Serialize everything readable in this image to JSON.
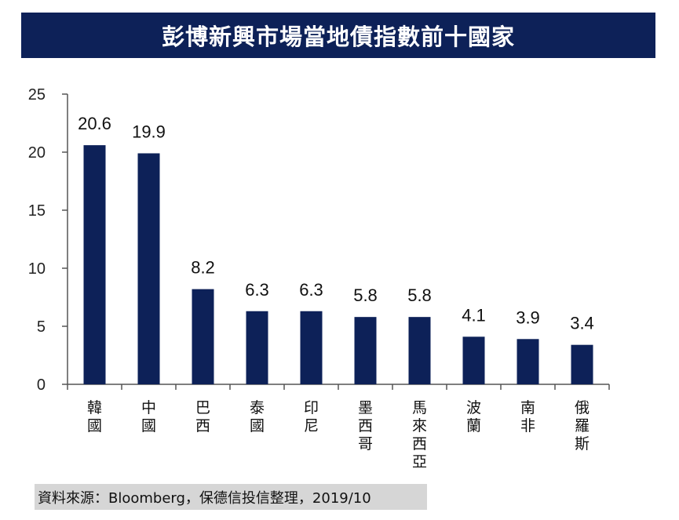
{
  "title": "彭博新興市場當地債指數前十國家",
  "source": "資料來源：Bloomberg，保德信投信整理，2019/10",
  "colors": {
    "bar": "#0d2158",
    "banner": "#0d2158",
    "axis": "#555555",
    "source_bg": "#d6d6d6"
  },
  "chart_data": {
    "type": "bar",
    "title": "彭博新興市場當地債指數前十國家",
    "xlabel": "",
    "ylabel": "",
    "categories": [
      "韓國",
      "中國",
      "巴西",
      "泰國",
      "印尼",
      "墨西哥",
      "馬來西亞",
      "波蘭",
      "南非",
      "俄羅斯"
    ],
    "values": [
      20.6,
      19.9,
      8.2,
      6.3,
      6.3,
      5.8,
      5.8,
      4.1,
      3.9,
      3.4
    ],
    "value_labels": [
      "20.6",
      "19.9",
      "8.2",
      "6.3",
      "6.3",
      "5.8",
      "5.8",
      "4.1",
      "3.9",
      "3.4"
    ],
    "yticks": [
      "0",
      "5",
      "10",
      "15",
      "20",
      "25"
    ],
    "ylim": [
      0,
      25
    ],
    "grid": false,
    "legend": "none"
  }
}
